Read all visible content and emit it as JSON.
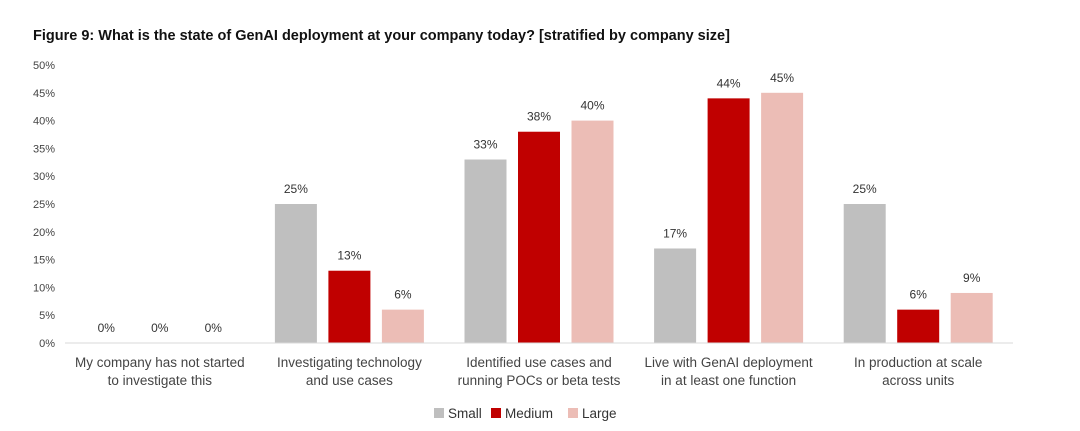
{
  "title": "Figure 9: What is the state of GenAI deployment at your company today? [stratified by company size]",
  "colors": {
    "Small": "#bfbfbf",
    "Medium": "#c00000",
    "Large": "#ecbdb6",
    "axis": "#d9d9d9"
  },
  "chart_data": {
    "type": "bar",
    "title": "Figure 9: What is the state of GenAI deployment at your company today? [stratified by company size]",
    "categories": [
      [
        "My company has not started",
        "to investigate this"
      ],
      [
        "Investigating technology",
        "and use cases"
      ],
      [
        "Identified use cases and",
        "running POCs or beta tests"
      ],
      [
        "Live with GenAI deployment",
        "in at least one function"
      ],
      [
        "In production at scale",
        "across units"
      ]
    ],
    "series": [
      {
        "name": "Small",
        "values": [
          0,
          25,
          33,
          17,
          25
        ],
        "labels": [
          "0%",
          "25%",
          "33%",
          "17%",
          "25%"
        ]
      },
      {
        "name": "Medium",
        "values": [
          0,
          13,
          38,
          44,
          6
        ],
        "labels": [
          "0%",
          "13%",
          "38%",
          "44%",
          "6%"
        ]
      },
      {
        "name": "Large",
        "values": [
          0,
          6,
          40,
          45,
          9
        ],
        "labels": [
          "0%",
          "6%",
          "40%",
          "45%",
          "9%"
        ]
      }
    ],
    "ylim": [
      0,
      50
    ],
    "yticks": [
      "0%",
      "5%",
      "10%",
      "15%",
      "20%",
      "25%",
      "30%",
      "35%",
      "40%",
      "45%",
      "50%"
    ],
    "xlabel": "",
    "ylabel": "",
    "grid": false,
    "legend_position": "bottom"
  }
}
